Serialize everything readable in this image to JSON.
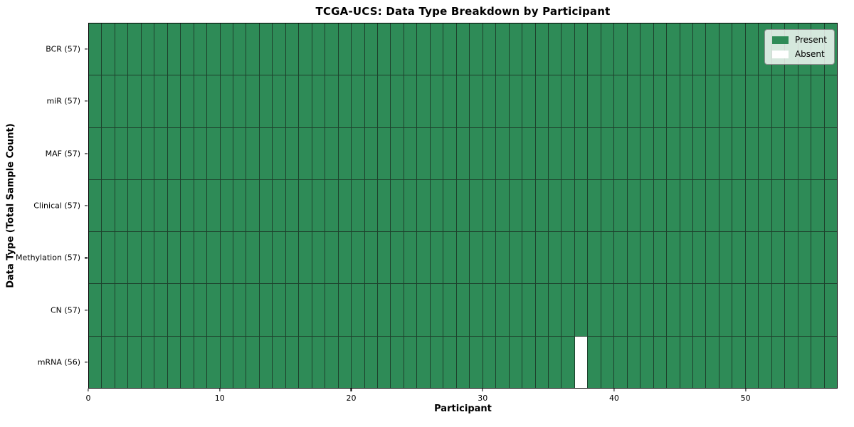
{
  "chart_data": {
    "type": "heatmap",
    "title": "TCGA-UCS: Data Type Breakdown by Participant",
    "xlabel": "Participant",
    "ylabel": "Data Type (Total Sample Count)",
    "n_participants": 57,
    "x_ticks": [
      0,
      10,
      20,
      30,
      40,
      50
    ],
    "rows": [
      {
        "label": "BCR (57)",
        "data_type": "BCR",
        "total_samples": 57,
        "absent_participants": []
      },
      {
        "label": "miR (57)",
        "data_type": "miR",
        "total_samples": 57,
        "absent_participants": []
      },
      {
        "label": "MAF (57)",
        "data_type": "MAF",
        "total_samples": 57,
        "absent_participants": []
      },
      {
        "label": "Clinical (57)",
        "data_type": "Clinical",
        "total_samples": 57,
        "absent_participants": []
      },
      {
        "label": "Methylation (57)",
        "data_type": "Methylation",
        "total_samples": 57,
        "absent_participants": []
      },
      {
        "label": "CN (57)",
        "data_type": "CN",
        "total_samples": 57,
        "absent_participants": []
      },
      {
        "label": "mRNA (56)",
        "data_type": "mRNA",
        "total_samples": 56,
        "absent_participants": [
          37
        ]
      }
    ],
    "legend": [
      {
        "label": "Present",
        "color": "#2e8b57"
      },
      {
        "label": "Absent",
        "color": "#ffffff"
      }
    ],
    "legend_position": "upper-right",
    "colors": {
      "present": "#2e8b57",
      "absent": "#ffffff",
      "cell_edge": "#1d402c",
      "spine": "#000000",
      "background": "#ffffff"
    },
    "xlim": [
      0,
      57
    ]
  }
}
